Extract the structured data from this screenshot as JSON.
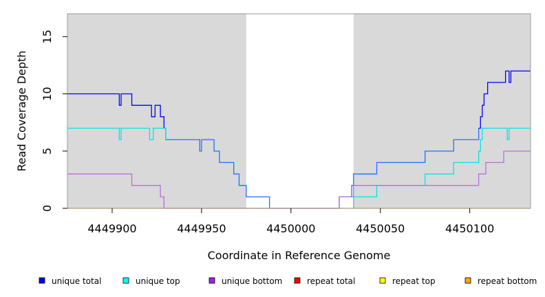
{
  "chart_data": {
    "type": "line",
    "title": "",
    "xlabel": "Coordinate in Reference Genome",
    "ylabel": "Read Coverage Depth",
    "xlim": [
      4449875,
      4450134
    ],
    "ylim": [
      0,
      17
    ],
    "x_ticks": [
      4449900,
      4449950,
      4450000,
      4450050,
      4450100
    ],
    "y_ticks": [
      0,
      5,
      10,
      15
    ],
    "shaded_regions": [
      {
        "x0": 4449875,
        "x1": 4449975,
        "color": "#d9d9d9"
      },
      {
        "x0": 4450035,
        "x1": 4450134,
        "color": "#d9d9d9"
      }
    ],
    "series": [
      {
        "name": "unique total",
        "color": "#0000ff",
        "points": [
          [
            4449875,
            10
          ],
          [
            4449904,
            10
          ],
          [
            4449904,
            9
          ],
          [
            4449905,
            9
          ],
          [
            4449905,
            10
          ],
          [
            4449911,
            10
          ],
          [
            4449911,
            9
          ],
          [
            4449922,
            9
          ],
          [
            4449922,
            8
          ],
          [
            4449924,
            8
          ],
          [
            4449924,
            9
          ],
          [
            4449927,
            9
          ],
          [
            4449927,
            8
          ],
          [
            4449929,
            8
          ],
          [
            4449929,
            7
          ],
          [
            4449930,
            7
          ]
        ]
      },
      {
        "name": "unique total",
        "color": "#1e6fff",
        "points": [
          [
            4449930,
            7
          ],
          [
            4449930,
            6
          ],
          [
            4449949,
            6
          ],
          [
            4449949,
            5
          ],
          [
            4449950,
            5
          ],
          [
            4449950,
            6
          ],
          [
            4449957,
            6
          ],
          [
            4449957,
            5
          ],
          [
            4449960,
            5
          ],
          [
            4449960,
            4
          ],
          [
            4449968,
            4
          ],
          [
            4449968,
            3
          ],
          [
            4449971,
            3
          ],
          [
            4449971,
            2
          ],
          [
            4449975,
            2
          ],
          [
            4449975,
            1
          ],
          [
            4449988,
            1
          ],
          [
            4449988,
            0
          ],
          [
            4450027,
            0
          ],
          [
            4450027,
            1
          ],
          [
            4450034,
            1
          ],
          [
            4450034,
            2
          ],
          [
            4450035,
            2
          ],
          [
            4450035,
            3
          ],
          [
            4450048,
            3
          ],
          [
            4450048,
            4
          ],
          [
            4450075,
            4
          ],
          [
            4450075,
            5
          ],
          [
            4450091,
            5
          ],
          [
            4450091,
            6
          ],
          [
            4450105,
            6
          ],
          [
            4450105,
            7
          ]
        ]
      },
      {
        "name": "unique total",
        "color": "#0000ff",
        "points": [
          [
            4450105,
            7
          ],
          [
            4450106,
            7
          ],
          [
            4450106,
            8
          ],
          [
            4450107,
            8
          ],
          [
            4450107,
            9
          ],
          [
            4450108,
            9
          ],
          [
            4450108,
            10
          ],
          [
            4450110,
            10
          ],
          [
            4450110,
            11
          ],
          [
            4450120,
            11
          ],
          [
            4450120,
            12
          ],
          [
            4450122,
            12
          ],
          [
            4450122,
            11
          ],
          [
            4450123,
            11
          ],
          [
            4450123,
            12
          ],
          [
            4450134,
            12
          ]
        ]
      },
      {
        "name": "unique top",
        "color": "#00e5e5",
        "points": [
          [
            4449875,
            7
          ],
          [
            4449904,
            7
          ],
          [
            4449904,
            6
          ],
          [
            4449905,
            6
          ],
          [
            4449905,
            7
          ],
          [
            4449921,
            7
          ],
          [
            4449921,
            6
          ],
          [
            4449923,
            6
          ],
          [
            4449923,
            7
          ],
          [
            4449930,
            7
          ],
          [
            4449930,
            6
          ]
        ]
      },
      {
        "name": "unique top",
        "color": "#00e5e5",
        "points": [
          [
            4450035,
            0
          ],
          [
            4450035,
            1
          ],
          [
            4450048,
            1
          ],
          [
            4450048,
            2
          ],
          [
            4450075,
            2
          ],
          [
            4450075,
            3
          ],
          [
            4450091,
            3
          ],
          [
            4450091,
            4
          ],
          [
            4450105,
            4
          ],
          [
            4450105,
            5
          ],
          [
            4450106,
            5
          ],
          [
            4450106,
            6
          ],
          [
            4450107,
            6
          ],
          [
            4450107,
            7
          ],
          [
            4450121,
            7
          ],
          [
            4450121,
            6
          ],
          [
            4450122,
            6
          ],
          [
            4450122,
            7
          ],
          [
            4450134,
            7
          ]
        ]
      },
      {
        "name": "unique bottom",
        "color": "#b86de0",
        "points": [
          [
            4449875,
            3
          ],
          [
            4449911,
            3
          ],
          [
            4449911,
            2
          ],
          [
            4449927,
            2
          ],
          [
            4449927,
            1
          ],
          [
            4449929,
            1
          ],
          [
            4449929,
            0
          ],
          [
            4450027,
            0
          ],
          [
            4450027,
            1
          ],
          [
            4450035,
            1
          ],
          [
            4450035,
            2
          ],
          [
            4450105,
            2
          ],
          [
            4450105,
            3
          ],
          [
            4450109,
            3
          ],
          [
            4450109,
            4
          ],
          [
            4450119,
            4
          ],
          [
            4450119,
            5
          ],
          [
            4450134,
            5
          ]
        ]
      },
      {
        "name": "repeat bottom",
        "color": "#ffa500",
        "points": [
          [
            4449875,
            0
          ],
          [
            4450134,
            0
          ]
        ]
      }
    ]
  },
  "legend": [
    {
      "label": "unique total",
      "color": "#0000ff"
    },
    {
      "label": "unique top",
      "color": "#00ffff"
    },
    {
      "label": "unique bottom",
      "color": "#a020f0"
    },
    {
      "label": "repeat total",
      "color": "#ff0000"
    },
    {
      "label": "repeat top",
      "color": "#ffff00"
    },
    {
      "label": "repeat bottom",
      "color": "#ffa500"
    }
  ]
}
